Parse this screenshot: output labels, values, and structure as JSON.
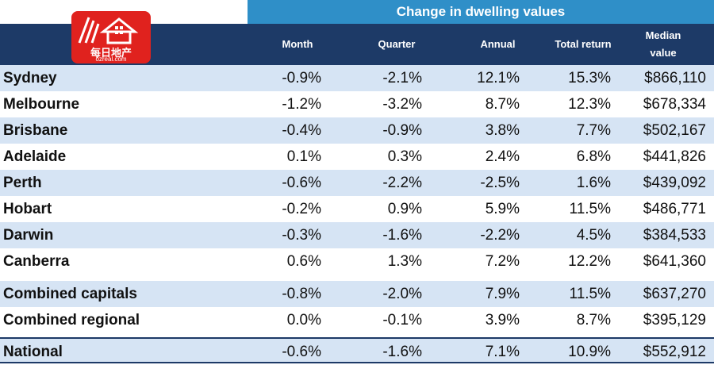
{
  "title": "Change in dwelling values",
  "columns": [
    "Month",
    "Quarter",
    "Annual",
    "Total return",
    "Median value"
  ],
  "logo": {
    "text": "每日地产",
    "url": "ozreal.com"
  },
  "rows": [
    {
      "name": "Sydney",
      "month": "-0.9%",
      "quarter": "-2.1%",
      "annual": "12.1%",
      "total_return": "15.3%",
      "median": "$866,110"
    },
    {
      "name": "Melbourne",
      "month": "-1.2%",
      "quarter": "-3.2%",
      "annual": "8.7%",
      "total_return": "12.3%",
      "median": "$678,334"
    },
    {
      "name": "Brisbane",
      "month": "-0.4%",
      "quarter": "-0.9%",
      "annual": "3.8%",
      "total_return": "7.7%",
      "median": "$502,167"
    },
    {
      "name": "Adelaide",
      "month": "0.1%",
      "quarter": "0.3%",
      "annual": "2.4%",
      "total_return": "6.8%",
      "median": "$441,826"
    },
    {
      "name": "Perth",
      "month": "-0.6%",
      "quarter": "-2.2%",
      "annual": "-2.5%",
      "total_return": "1.6%",
      "median": "$439,092"
    },
    {
      "name": "Hobart",
      "month": "-0.2%",
      "quarter": "0.9%",
      "annual": "5.9%",
      "total_return": "11.5%",
      "median": "$486,771"
    },
    {
      "name": "Darwin",
      "month": "-0.3%",
      "quarter": "-1.6%",
      "annual": "-2.2%",
      "total_return": "4.5%",
      "median": "$384,533"
    },
    {
      "name": "Canberra",
      "month": "0.6%",
      "quarter": "1.3%",
      "annual": "7.2%",
      "total_return": "12.2%",
      "median": "$641,360"
    },
    {
      "name": "Combined capitals",
      "month": "-0.8%",
      "quarter": "-2.0%",
      "annual": "7.9%",
      "total_return": "11.5%",
      "median": "$637,270"
    },
    {
      "name": "Combined regional",
      "month": "0.0%",
      "quarter": "-0.1%",
      "annual": "3.9%",
      "total_return": "8.7%",
      "median": "$395,129"
    },
    {
      "name": "National",
      "month": "-0.6%",
      "quarter": "-1.6%",
      "annual": "7.1%",
      "total_return": "10.9%",
      "median": "$552,912"
    }
  ]
}
